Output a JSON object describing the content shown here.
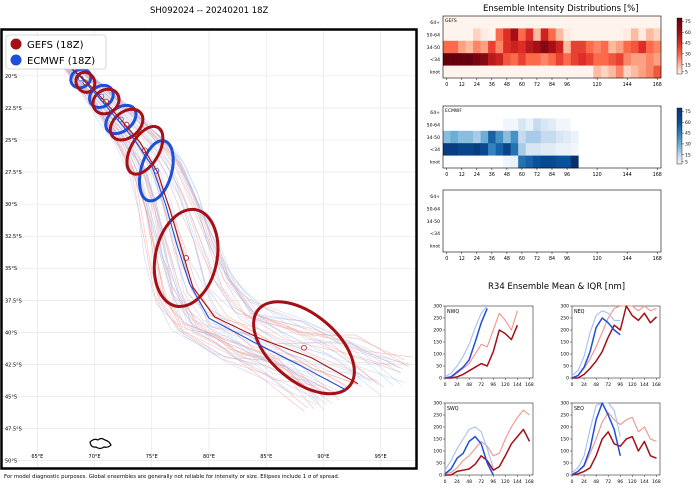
{
  "header": {
    "main_title": "SH092024 -- 20240201 18Z",
    "intensity_title": "Ensemble Intensity Distributions [%]",
    "r34_title": "R34 Ensemble Mean & IQR [nm]"
  },
  "footer": "For model diagnostic purposes. Global ensembles are generally not reliable for intensity or size. Ellipses include 1 σ of spread.",
  "legend": [
    {
      "label": "GEFS (18Z)",
      "color": "#a50f15"
    },
    {
      "label": "ECMWF (18Z)",
      "color": "#1f4fd8"
    }
  ],
  "colors": {
    "gefs": "#a50f15",
    "gefs_light": "#f1948a",
    "ecmwf": "#1f4fd8",
    "ecmwf_light": "#a7bff0"
  },
  "chart_data": [
    {
      "type": "line",
      "name": "track_map",
      "x_ticks": [
        "65°E",
        "70°E",
        "75°E",
        "80°E",
        "85°E",
        "90°E",
        "95°E"
      ],
      "y_ticks": [
        "20°S",
        "22.5°S",
        "25°S",
        "27.5°S",
        "30°S",
        "32.5°S",
        "35°S",
        "37.5°S",
        "40°S",
        "42.5°S",
        "45°S",
        "47.5°S",
        "50°S"
      ],
      "xlim": [
        62,
        98
      ],
      "ylim": [
        -50.5,
        -16.5
      ],
      "gefs_mean_track": {
        "lon": [
          67.5,
          69.0,
          70.5,
          72.2,
          74.0,
          75.5,
          76.6,
          77.6,
          78.6,
          80.5,
          84.5,
          89.0,
          93.0
        ],
        "lat": [
          -19.0,
          -20.2,
          -21.6,
          -23.3,
          -25.2,
          -27.5,
          -30.5,
          -33.5,
          -36.5,
          -38.8,
          -40.5,
          -42.0,
          -44.0
        ]
      },
      "ecmwf_mean_track": {
        "lon": [
          67.3,
          68.8,
          70.2,
          71.8,
          73.5,
          75.0,
          76.2,
          77.2,
          78.3,
          80.0,
          84.0,
          88.0,
          92.0
        ],
        "lat": [
          -18.9,
          -20.1,
          -21.5,
          -23.2,
          -25.0,
          -27.0,
          -30.0,
          -33.2,
          -36.2,
          -38.9,
          -40.8,
          -42.6,
          -44.5
        ]
      },
      "gefs_ellipses": [
        {
          "lon": 69.2,
          "lat": -20.5,
          "rx_deg": 0.8,
          "ry_deg": 0.8,
          "angle": -30
        },
        {
          "lon": 71.0,
          "lat": -22.0,
          "rx_deg": 1.2,
          "ry_deg": 0.9,
          "angle": -35
        },
        {
          "lon": 72.8,
          "lat": -23.8,
          "rx_deg": 1.6,
          "ry_deg": 1.0,
          "angle": -40
        },
        {
          "lon": 74.4,
          "lat": -25.8,
          "rx_deg": 2.3,
          "ry_deg": 1.1,
          "angle": -60
        },
        {
          "lon": 78.0,
          "lat": -34.2,
          "rx_deg": 4.3,
          "ry_deg": 2.4,
          "angle": -78
        },
        {
          "lon": 88.3,
          "lat": -41.2,
          "rx_deg": 5.2,
          "ry_deg": 2.6,
          "angle": 40
        }
      ],
      "ecmwf_ellipses": [
        {
          "lon": 68.8,
          "lat": -20.2,
          "rx_deg": 0.9,
          "ry_deg": 0.7,
          "angle": -30
        },
        {
          "lon": 70.6,
          "lat": -21.6,
          "rx_deg": 1.1,
          "ry_deg": 0.8,
          "angle": -35
        },
        {
          "lon": 72.3,
          "lat": -23.4,
          "rx_deg": 1.5,
          "ry_deg": 0.9,
          "angle": -40
        },
        {
          "lon": 75.4,
          "lat": -27.4,
          "rx_deg": 2.7,
          "ry_deg": 1.2,
          "angle": -75
        }
      ]
    },
    {
      "type": "heatmap",
      "name": "gefs_intensity",
      "panel_label": "GEFS",
      "x_ticks": [
        "0",
        "12",
        "24",
        "36",
        "48",
        "60",
        "72",
        "84",
        "96",
        "120",
        "144",
        "168"
      ],
      "x_range": [
        -3,
        171
      ],
      "y_labels": [
        "64+",
        "50-64",
        "34-50",
        "<34",
        "knot"
      ],
      "hours": [
        0,
        6,
        12,
        18,
        24,
        30,
        36,
        42,
        48,
        54,
        60,
        66,
        72,
        78,
        84,
        90,
        96,
        102,
        108,
        114,
        120,
        126,
        132,
        138,
        144,
        150,
        156,
        162,
        168
      ],
      "values": [
        [
          3,
          3,
          3,
          3,
          3,
          3,
          3,
          3,
          3,
          3,
          3,
          3,
          3,
          3,
          3,
          3,
          3,
          3,
          3,
          3,
          3,
          3,
          3,
          3,
          3,
          3,
          3,
          3,
          3
        ],
        [
          3,
          3,
          3,
          3,
          10,
          5,
          3,
          30,
          45,
          60,
          30,
          45,
          15,
          50,
          30,
          15,
          5,
          3,
          3,
          3,
          3,
          3,
          3,
          3,
          5,
          15,
          5,
          15,
          10
        ],
        [
          30,
          30,
          20,
          15,
          25,
          20,
          40,
          25,
          45,
          50,
          45,
          55,
          60,
          70,
          60,
          50,
          15,
          40,
          40,
          30,
          25,
          30,
          15,
          20,
          30,
          35,
          45,
          30,
          25
        ],
        [
          80,
          80,
          80,
          80,
          75,
          70,
          55,
          50,
          35,
          30,
          40,
          30,
          30,
          25,
          30,
          40,
          30,
          40,
          45,
          40,
          30,
          30,
          35,
          40,
          25,
          20,
          20,
          25,
          20
        ],
        [
          3,
          3,
          3,
          3,
          3,
          3,
          3,
          3,
          3,
          3,
          3,
          3,
          3,
          3,
          3,
          3,
          3,
          3,
          3,
          3,
          15,
          10,
          15,
          25,
          10,
          15,
          20,
          25,
          35
        ]
      ],
      "colorbar_ticks": [
        "75",
        "60",
        "45",
        "30",
        "15",
        "5"
      ]
    },
    {
      "type": "heatmap",
      "name": "ecmwf_intensity",
      "panel_label": "ECMWF",
      "x_ticks": [
        "0",
        "12",
        "24",
        "36",
        "48",
        "60",
        "72",
        "84",
        "96",
        "120",
        "144",
        "168"
      ],
      "x_range": [
        -3,
        171
      ],
      "y_labels": [
        "64+",
        "50-64",
        "34-50",
        "<34",
        "knot"
      ],
      "hours": [
        0,
        6,
        12,
        18,
        24,
        30,
        36,
        42,
        48,
        54,
        60,
        66,
        72,
        78,
        84,
        90,
        96,
        102
      ],
      "values": [
        [
          0,
          0,
          0,
          0,
          0,
          0,
          0,
          0,
          0,
          0,
          0,
          0,
          0,
          0,
          0,
          0,
          0,
          0
        ],
        [
          0,
          0,
          0,
          0,
          0,
          0,
          0,
          0,
          3,
          3,
          10,
          5,
          15,
          10,
          8,
          3,
          3,
          0
        ],
        [
          25,
          30,
          25,
          25,
          20,
          30,
          55,
          40,
          25,
          40,
          15,
          20,
          20,
          15,
          15,
          10,
          8,
          5
        ],
        [
          75,
          75,
          70,
          70,
          75,
          65,
          45,
          55,
          70,
          50,
          20,
          10,
          10,
          8,
          8,
          5,
          5,
          3
        ],
        [
          0,
          0,
          0,
          0,
          0,
          0,
          0,
          0,
          3,
          5,
          50,
          55,
          60,
          65,
          65,
          60,
          60,
          85
        ]
      ],
      "colorbar_ticks": [
        "75",
        "60",
        "45",
        "30",
        "15",
        "5"
      ]
    },
    {
      "type": "heatmap",
      "name": "empty_intensity",
      "panel_label": "",
      "x_ticks": [
        "0",
        "12",
        "24",
        "36",
        "48",
        "60",
        "72",
        "84",
        "96",
        "120",
        "144",
        "168"
      ],
      "x_range": [
        -3,
        171
      ],
      "y_labels": [
        "64+",
        "50-64",
        "34-50",
        "<34",
        "knot"
      ],
      "hours": [],
      "values": []
    },
    {
      "type": "line",
      "name": "r34_quadrants",
      "x_ticks": [
        "0",
        "24",
        "48",
        "72",
        "96",
        "120",
        "144",
        "168"
      ],
      "y_ticks": [
        "0",
        "50",
        "100",
        "150",
        "200",
        "250",
        "300"
      ],
      "xlim": [
        0,
        175
      ],
      "ylim": [
        0,
        300
      ],
      "hours": [
        0,
        12,
        24,
        36,
        48,
        60,
        72,
        84,
        96,
        108,
        120,
        132,
        144,
        156,
        168
      ],
      "quadrants": [
        {
          "label": "NWQ",
          "gefs": [
            0,
            0,
            5,
            15,
            30,
            45,
            60,
            50,
            110,
            200,
            185,
            160,
            220,
            null,
            null
          ],
          "gefs_iqr": [
            0,
            0,
            20,
            40,
            60,
            100,
            140,
            130,
            200,
            270,
            240,
            200,
            280,
            null,
            null
          ],
          "ecmwf": [
            0,
            5,
            25,
            45,
            75,
            150,
            230,
            290,
            null,
            null,
            null,
            null,
            null,
            null,
            null
          ],
          "ecmwf_iqr": [
            5,
            20,
            50,
            90,
            140,
            210,
            270,
            300,
            null,
            null,
            null,
            null,
            null,
            null,
            null
          ]
        },
        {
          "label": "NEQ",
          "gefs": [
            0,
            0,
            15,
            40,
            70,
            110,
            170,
            220,
            200,
            300,
            260,
            240,
            270,
            230,
            255
          ],
          "gefs_iqr": [
            0,
            10,
            40,
            80,
            130,
            190,
            250,
            290,
            300,
            300,
            300,
            280,
            300,
            280,
            290
          ],
          "ecmwf": [
            0,
            10,
            45,
            110,
            210,
            250,
            230,
            200,
            180,
            null,
            null,
            null,
            null,
            null,
            null
          ],
          "ecmwf_iqr": [
            10,
            30,
            90,
            190,
            260,
            280,
            270,
            240,
            240,
            null,
            null,
            null,
            null,
            null,
            null
          ]
        },
        {
          "label": "SWQ",
          "gefs": [
            0,
            0,
            15,
            20,
            25,
            45,
            80,
            60,
            20,
            35,
            80,
            130,
            160,
            190,
            140
          ],
          "gefs_iqr": [
            5,
            10,
            30,
            60,
            80,
            110,
            140,
            120,
            80,
            90,
            150,
            200,
            240,
            270,
            250
          ],
          "ecmwf": [
            5,
            25,
            70,
            90,
            140,
            160,
            130,
            50,
            0,
            null,
            null,
            null,
            null,
            null,
            null
          ],
          "ecmwf_iqr": [
            20,
            60,
            110,
            150,
            190,
            200,
            180,
            110,
            30,
            null,
            null,
            null,
            null,
            null,
            null
          ]
        },
        {
          "label": "SEQ",
          "gefs": [
            0,
            5,
            15,
            30,
            80,
            150,
            180,
            130,
            120,
            150,
            160,
            100,
            140,
            80,
            70
          ],
          "gefs_iqr": [
            5,
            15,
            35,
            90,
            150,
            220,
            260,
            230,
            210,
            230,
            240,
            180,
            200,
            150,
            140
          ],
          "ecmwf": [
            0,
            15,
            40,
            110,
            230,
            300,
            250,
            190,
            80,
            null,
            null,
            null,
            null,
            null,
            null
          ],
          "ecmwf_iqr": [
            10,
            30,
            80,
            190,
            290,
            300,
            300,
            270,
            160,
            null,
            null,
            null,
            null,
            null,
            null
          ]
        }
      ]
    }
  ]
}
